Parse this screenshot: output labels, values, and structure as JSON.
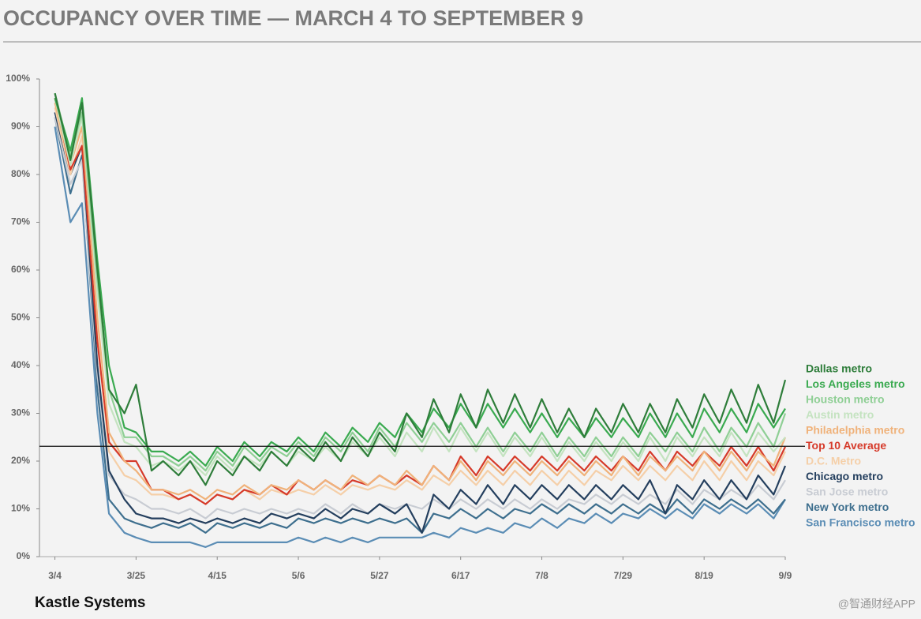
{
  "chart_data": {
    "type": "line",
    "title": "OCCUPANCY OVER TIME — MARCH 4 TO SEPTEMBER 9",
    "source": "Kastle Systems",
    "watermark": "@智通财经APP",
    "x": [
      0,
      4,
      7,
      11,
      14,
      18,
      21,
      25,
      28,
      32,
      35,
      39,
      42,
      46,
      49,
      53,
      56,
      60,
      63,
      67,
      70,
      74,
      77,
      81,
      84,
      88,
      91,
      95,
      98,
      102,
      105,
      109,
      112,
      116,
      119,
      123,
      126,
      130,
      133,
      137,
      140,
      144,
      147,
      151,
      154,
      158,
      161,
      165,
      168,
      172,
      175,
      179,
      182,
      186,
      189
    ],
    "xlim": [
      -4,
      189
    ],
    "xticks": [
      {
        "value": 0,
        "label": "3/4"
      },
      {
        "value": 21,
        "label": "3/25"
      },
      {
        "value": 42,
        "label": "4/15"
      },
      {
        "value": 63,
        "label": "5/6"
      },
      {
        "value": 84,
        "label": "5/27"
      },
      {
        "value": 105,
        "label": "6/17"
      },
      {
        "value": 126,
        "label": "7/8"
      },
      {
        "value": 147,
        "label": "7/29"
      },
      {
        "value": 168,
        "label": "8/19"
      },
      {
        "value": 189,
        "label": "9/9"
      }
    ],
    "ylim": [
      0,
      100
    ],
    "yticks": [
      {
        "value": 0,
        "label": "0%"
      },
      {
        "value": 10,
        "label": "10%"
      },
      {
        "value": 20,
        "label": "20%"
      },
      {
        "value": 30,
        "label": "30%"
      },
      {
        "value": 40,
        "label": "40%"
      },
      {
        "value": 50,
        "label": "50%"
      },
      {
        "value": 60,
        "label": "60%"
      },
      {
        "value": 70,
        "label": "70%"
      },
      {
        "value": 80,
        "label": "80%"
      },
      {
        "value": 90,
        "label": "90%"
      },
      {
        "value": 100,
        "label": "100%"
      }
    ],
    "reference_line": 23.1,
    "series": [
      {
        "name": "Dallas metro",
        "color": "#2e7d3a",
        "values": [
          97,
          83,
          95,
          60,
          35,
          30,
          36,
          18,
          20,
          17,
          20,
          15,
          20,
          17,
          21,
          18,
          22,
          19,
          23,
          20,
          24,
          20,
          25,
          21,
          26,
          22,
          30,
          25,
          33,
          26,
          34,
          27,
          35,
          28,
          34,
          27,
          33,
          26,
          31,
          25,
          31,
          26,
          32,
          26,
          32,
          26,
          33,
          27,
          34,
          28,
          35,
          28,
          36,
          28,
          37
        ]
      },
      {
        "name": "Los Angeles metro",
        "color": "#3aaa50",
        "values": [
          96,
          85,
          96,
          62,
          40,
          27,
          26,
          22,
          22,
          20,
          22,
          19,
          23,
          20,
          24,
          21,
          24,
          22,
          25,
          22,
          26,
          23,
          27,
          24,
          28,
          25,
          30,
          26,
          31,
          27,
          32,
          27,
          32,
          27,
          31,
          26,
          30,
          25,
          29,
          25,
          29,
          25,
          29,
          25,
          30,
          25,
          30,
          25,
          31,
          26,
          31,
          26,
          32,
          27,
          31
        ]
      },
      {
        "name": "Houston metro",
        "color": "#8fcf95",
        "values": [
          97,
          84,
          93,
          58,
          35,
          25,
          25,
          21,
          21,
          19,
          21,
          18,
          22,
          19,
          23,
          20,
          23,
          21,
          24,
          21,
          25,
          22,
          26,
          22,
          27,
          23,
          28,
          24,
          28,
          24,
          28,
          23,
          27,
          22,
          26,
          22,
          26,
          21,
          25,
          21,
          25,
          21,
          25,
          21,
          26,
          22,
          26,
          22,
          27,
          22,
          27,
          23,
          28,
          23,
          30
        ]
      },
      {
        "name": "Austin metro",
        "color": "#c4e3c0",
        "values": [
          96,
          82,
          92,
          55,
          32,
          24,
          23,
          19,
          20,
          18,
          20,
          17,
          21,
          18,
          21,
          19,
          22,
          19,
          22,
          20,
          23,
          20,
          24,
          21,
          25,
          21,
          26,
          22,
          27,
          22,
          27,
          22,
          26,
          21,
          25,
          21,
          25,
          20,
          24,
          20,
          24,
          20,
          24,
          20,
          25,
          20,
          25,
          21,
          25,
          21,
          26,
          21,
          26,
          22,
          25
        ]
      },
      {
        "name": "Philadelphia metro",
        "color": "#f0b27a",
        "values": [
          95,
          82,
          90,
          50,
          26,
          20,
          18,
          14,
          14,
          13,
          14,
          12,
          14,
          13,
          15,
          13,
          15,
          14,
          16,
          14,
          16,
          14,
          17,
          15,
          17,
          15,
          18,
          15,
          19,
          16,
          20,
          16,
          20,
          17,
          20,
          17,
          20,
          17,
          20,
          17,
          20,
          17,
          21,
          17,
          21,
          18,
          21,
          18,
          22,
          18,
          22,
          18,
          22,
          19,
          25
        ]
      },
      {
        "name": "Top 10 Average",
        "color": "#d63a2a",
        "values": [
          96,
          81,
          86,
          45,
          24,
          20,
          20,
          14,
          14,
          12,
          13,
          11,
          13,
          12,
          14,
          13,
          15,
          13,
          16,
          14,
          16,
          14,
          16,
          15,
          17,
          15,
          17,
          15,
          19,
          16,
          21,
          17,
          21,
          18,
          21,
          18,
          21,
          18,
          21,
          18,
          21,
          18,
          21,
          18,
          22,
          18,
          22,
          19,
          22,
          19,
          23,
          19,
          23,
          18,
          23
        ]
      },
      {
        "name": "D.C. Metro",
        "color": "#f5cfa8",
        "values": [
          94,
          80,
          88,
          46,
          22,
          17,
          16,
          13,
          13,
          12,
          13,
          11,
          13,
          12,
          14,
          12,
          14,
          13,
          14,
          13,
          15,
          13,
          15,
          14,
          15,
          14,
          16,
          14,
          17,
          15,
          18,
          15,
          18,
          15,
          18,
          15,
          18,
          15,
          18,
          15,
          18,
          16,
          19,
          16,
          19,
          16,
          19,
          16,
          20,
          16,
          20,
          16,
          20,
          17,
          22
        ]
      },
      {
        "name": "Chicago metro",
        "color": "#243f5e",
        "values": [
          93,
          80,
          86,
          40,
          18,
          12,
          9,
          8,
          8,
          7,
          8,
          7,
          8,
          7,
          8,
          7,
          9,
          8,
          9,
          8,
          10,
          8,
          10,
          9,
          11,
          9,
          11,
          5,
          13,
          10,
          14,
          11,
          15,
          11,
          15,
          12,
          15,
          12,
          15,
          12,
          15,
          12,
          15,
          12,
          16,
          9,
          15,
          12,
          16,
          12,
          16,
          12,
          17,
          13,
          19
        ]
      },
      {
        "name": "San Jose metro",
        "color": "#c8ccd3",
        "values": [
          92,
          78,
          83,
          38,
          17,
          13,
          12,
          10,
          10,
          9,
          10,
          8,
          10,
          9,
          10,
          9,
          10,
          9,
          10,
          9,
          11,
          9,
          11,
          9,
          11,
          10,
          11,
          10,
          12,
          10,
          12,
          10,
          12,
          10,
          12,
          10,
          12,
          10,
          12,
          11,
          13,
          11,
          13,
          11,
          13,
          11,
          14,
          11,
          14,
          12,
          14,
          12,
          15,
          12,
          16
        ]
      },
      {
        "name": "New York metro",
        "color": "#3e6f8e",
        "values": [
          92,
          76,
          84,
          35,
          12,
          8,
          7,
          6,
          7,
          6,
          7,
          5,
          7,
          6,
          7,
          6,
          7,
          6,
          8,
          7,
          8,
          7,
          8,
          7,
          8,
          7,
          8,
          5,
          9,
          8,
          10,
          8,
          10,
          8,
          10,
          9,
          11,
          9,
          11,
          9,
          11,
          9,
          11,
          9,
          11,
          9,
          12,
          9,
          12,
          10,
          12,
          10,
          12,
          9,
          12
        ]
      },
      {
        "name": "San Francisco metro",
        "color": "#5b8db5",
        "values": [
          90,
          70,
          74,
          30,
          9,
          5,
          4,
          3,
          3,
          3,
          3,
          2,
          3,
          3,
          3,
          3,
          3,
          3,
          4,
          3,
          4,
          3,
          4,
          3,
          4,
          4,
          4,
          4,
          5,
          4,
          6,
          5,
          6,
          5,
          7,
          6,
          8,
          6,
          8,
          7,
          9,
          7,
          9,
          8,
          10,
          8,
          10,
          8,
          11,
          9,
          11,
          9,
          11,
          8,
          12
        ]
      }
    ]
  }
}
